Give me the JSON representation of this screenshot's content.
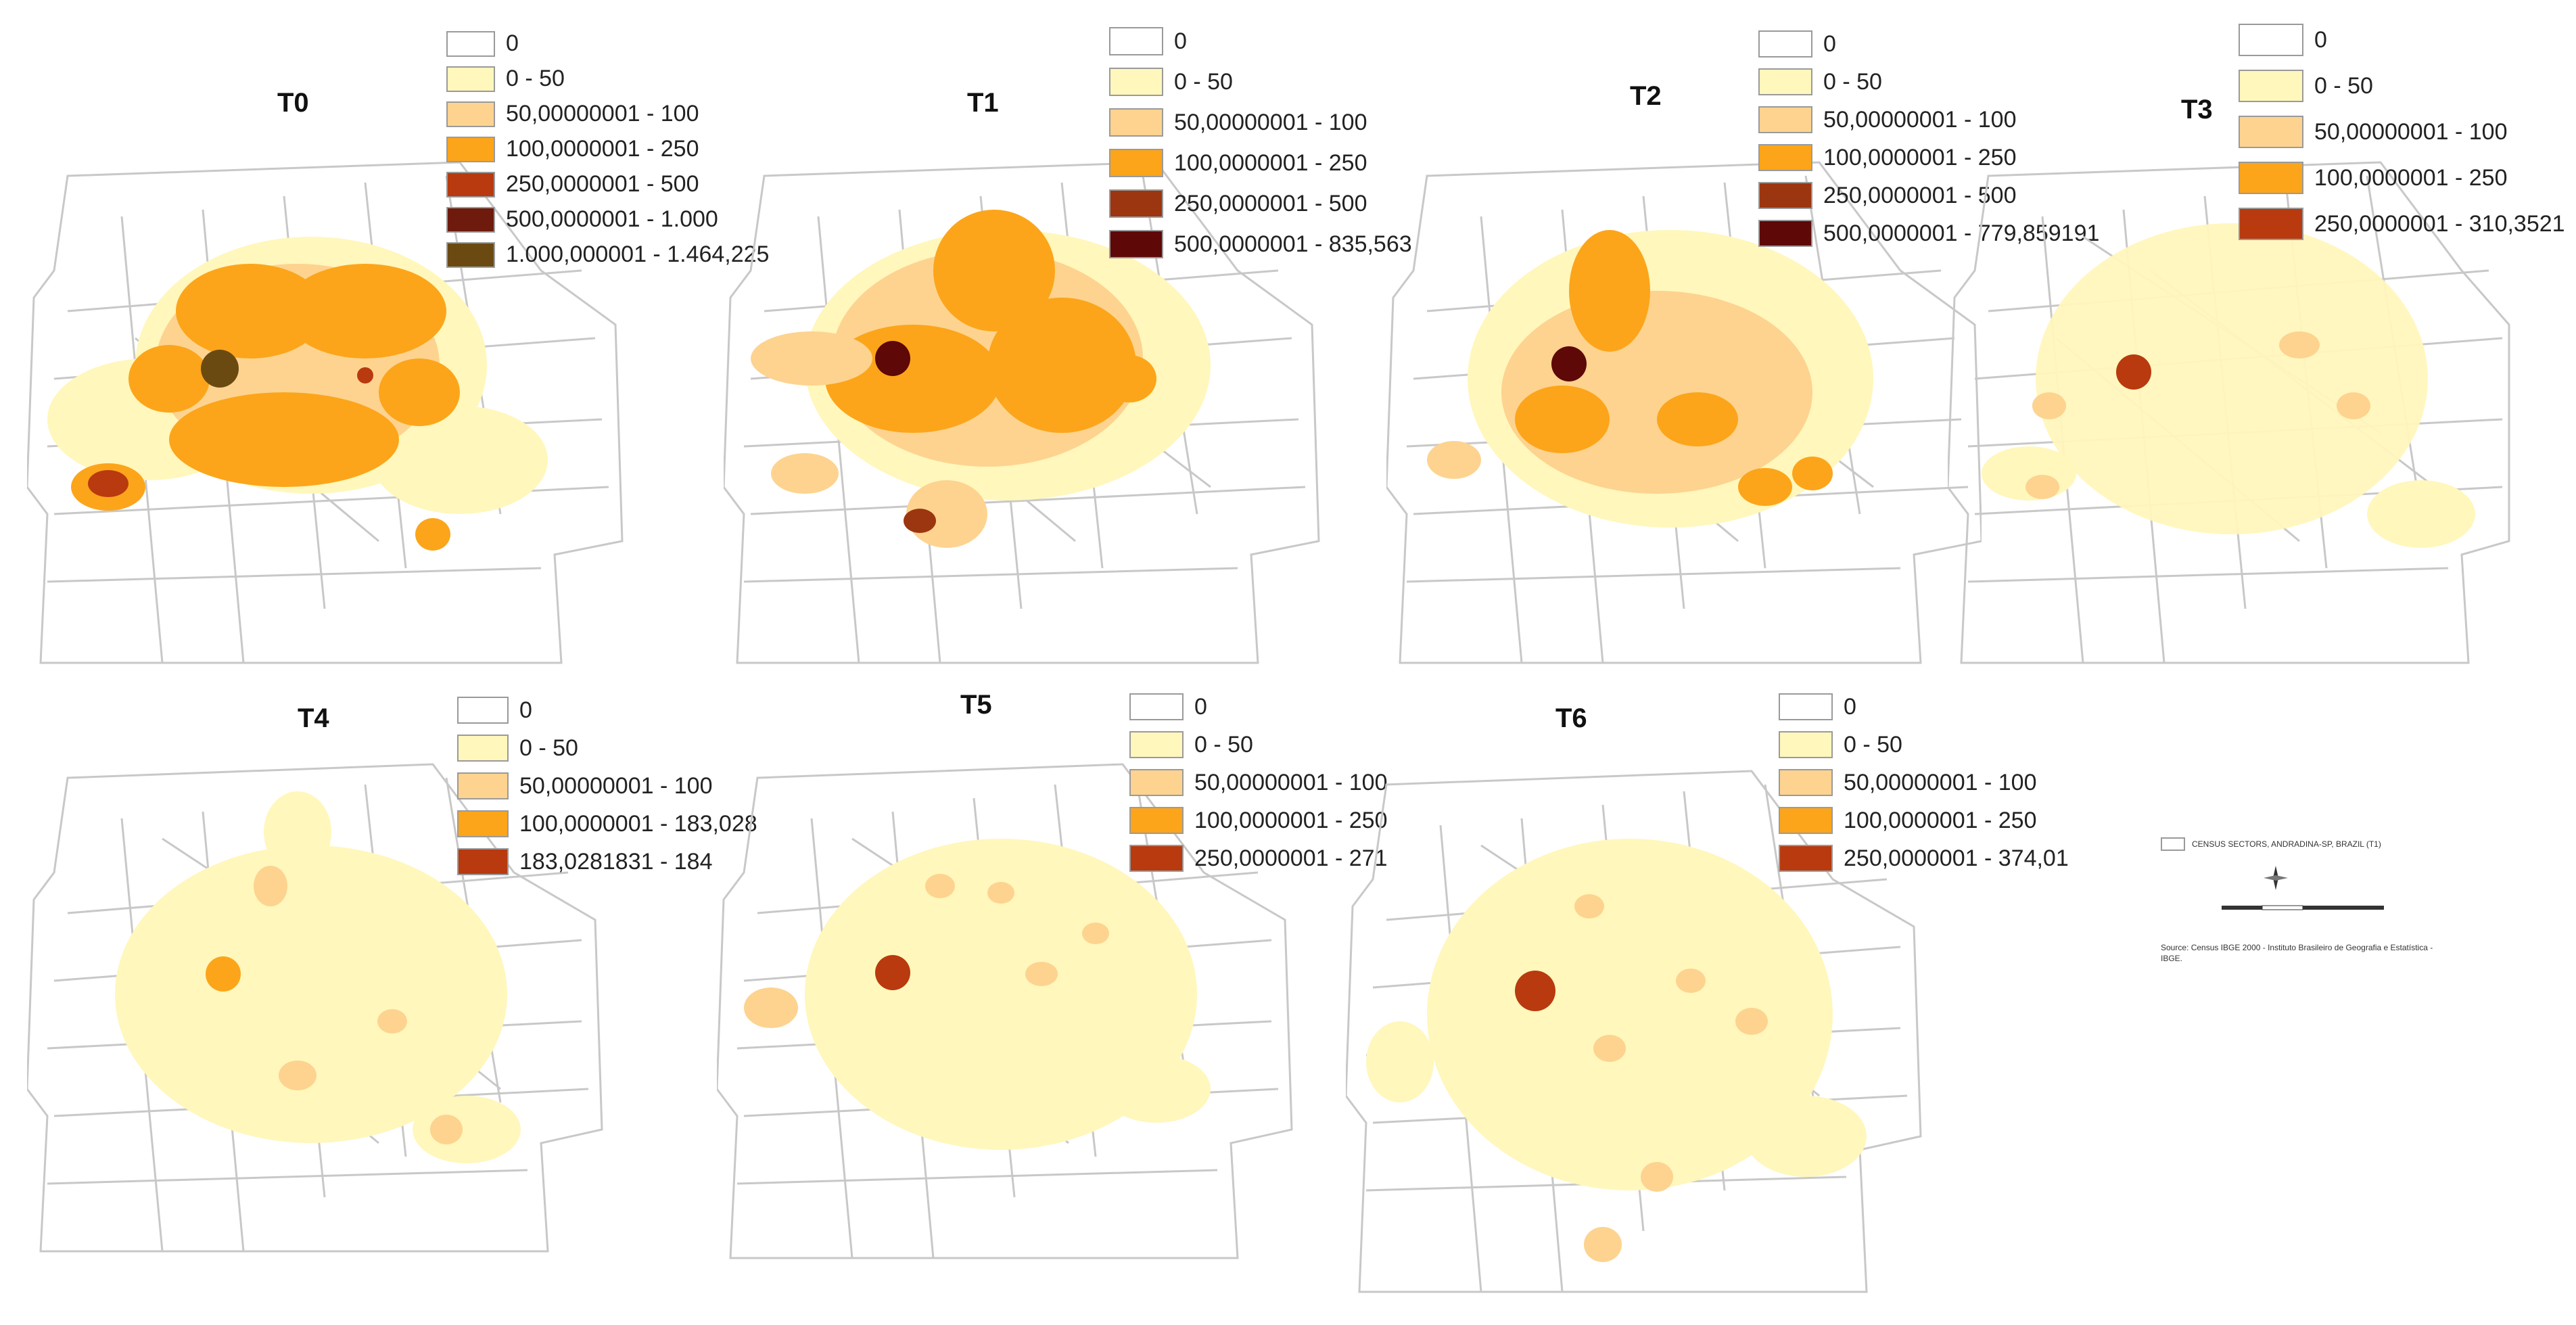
{
  "colors": {
    "c0": "#ffffff",
    "c1": "#fff7bc",
    "c2": "#fdd38f",
    "c3": "#fca51a",
    "c4": "#b83a0e",
    "c5": "#6e1a0d",
    "c6": "#6b4a12",
    "c4b": "#9b3610",
    "c5b": "#5e0808",
    "street": "#c8c8c8"
  },
  "panels": [
    {
      "title": "T0",
      "legend": [
        {
          "label": "0",
          "color": "c0"
        },
        {
          "label": "0 - 50",
          "color": "c1"
        },
        {
          "label": "50,00000001 - 100",
          "color": "c2"
        },
        {
          "label": "100,0000001 - 250",
          "color": "c3"
        },
        {
          "label": "250,0000001 - 500",
          "color": "c4"
        },
        {
          "label": "500,0000001 - 1.000",
          "color": "c5"
        },
        {
          "label": "1.000,000001 - 1.464,225",
          "color": "c6"
        }
      ]
    },
    {
      "title": "T1",
      "legend": [
        {
          "label": "0",
          "color": "c0"
        },
        {
          "label": "0 - 50",
          "color": "c1"
        },
        {
          "label": "50,00000001 - 100",
          "color": "c2"
        },
        {
          "label": "100,0000001 - 250",
          "color": "c3"
        },
        {
          "label": "250,0000001 - 500",
          "color": "c4b"
        },
        {
          "label": "500,0000001 - 835,563",
          "color": "c5b"
        }
      ]
    },
    {
      "title": "T2",
      "legend": [
        {
          "label": "0",
          "color": "c0"
        },
        {
          "label": "0 - 50",
          "color": "c1"
        },
        {
          "label": "50,00000001 - 100",
          "color": "c2"
        },
        {
          "label": "100,0000001 - 250",
          "color": "c3"
        },
        {
          "label": "250,0000001 - 500",
          "color": "c4b"
        },
        {
          "label": "500,0000001 - 779,859191",
          "color": "c5b"
        }
      ]
    },
    {
      "title": "T3",
      "legend": [
        {
          "label": "0",
          "color": "c0"
        },
        {
          "label": "0 - 50",
          "color": "c1"
        },
        {
          "label": "50,00000001 - 100",
          "color": "c2"
        },
        {
          "label": "100,0000001 - 250",
          "color": "c3"
        },
        {
          "label": "250,0000001 - 310,3521",
          "color": "c4"
        }
      ]
    },
    {
      "title": "T4",
      "legend": [
        {
          "label": "0",
          "color": "c0"
        },
        {
          "label": "0 - 50",
          "color": "c1"
        },
        {
          "label": "50,00000001 - 100",
          "color": "c2"
        },
        {
          "label": "100,0000001 - 183,028",
          "color": "c3"
        },
        {
          "label": "183,0281831 - 184",
          "color": "c4"
        }
      ]
    },
    {
      "title": "T5",
      "legend": [
        {
          "label": "0",
          "color": "c0"
        },
        {
          "label": "0 - 50",
          "color": "c1"
        },
        {
          "label": "50,00000001 - 100",
          "color": "c2"
        },
        {
          "label": "100,0000001 - 250",
          "color": "c3"
        },
        {
          "label": "250,0000001 - 271",
          "color": "c4"
        }
      ]
    },
    {
      "title": "T6",
      "legend": [
        {
          "label": "0",
          "color": "c0"
        },
        {
          "label": "0 - 50",
          "color": "c1"
        },
        {
          "label": "50,00000001 - 100",
          "color": "c2"
        },
        {
          "label": "100,0000001 - 250",
          "color": "c3"
        },
        {
          "label": "250,0000001 - 374,01",
          "color": "c4"
        }
      ]
    }
  ],
  "info": {
    "sector_label": "CENSUS SECTORS, ANDRADINA-SP, BRAZIL (T1)",
    "source": "Source: Census IBGE 2000 - Instituto Brasileiro de Geografia e Estatística - IBGE."
  }
}
